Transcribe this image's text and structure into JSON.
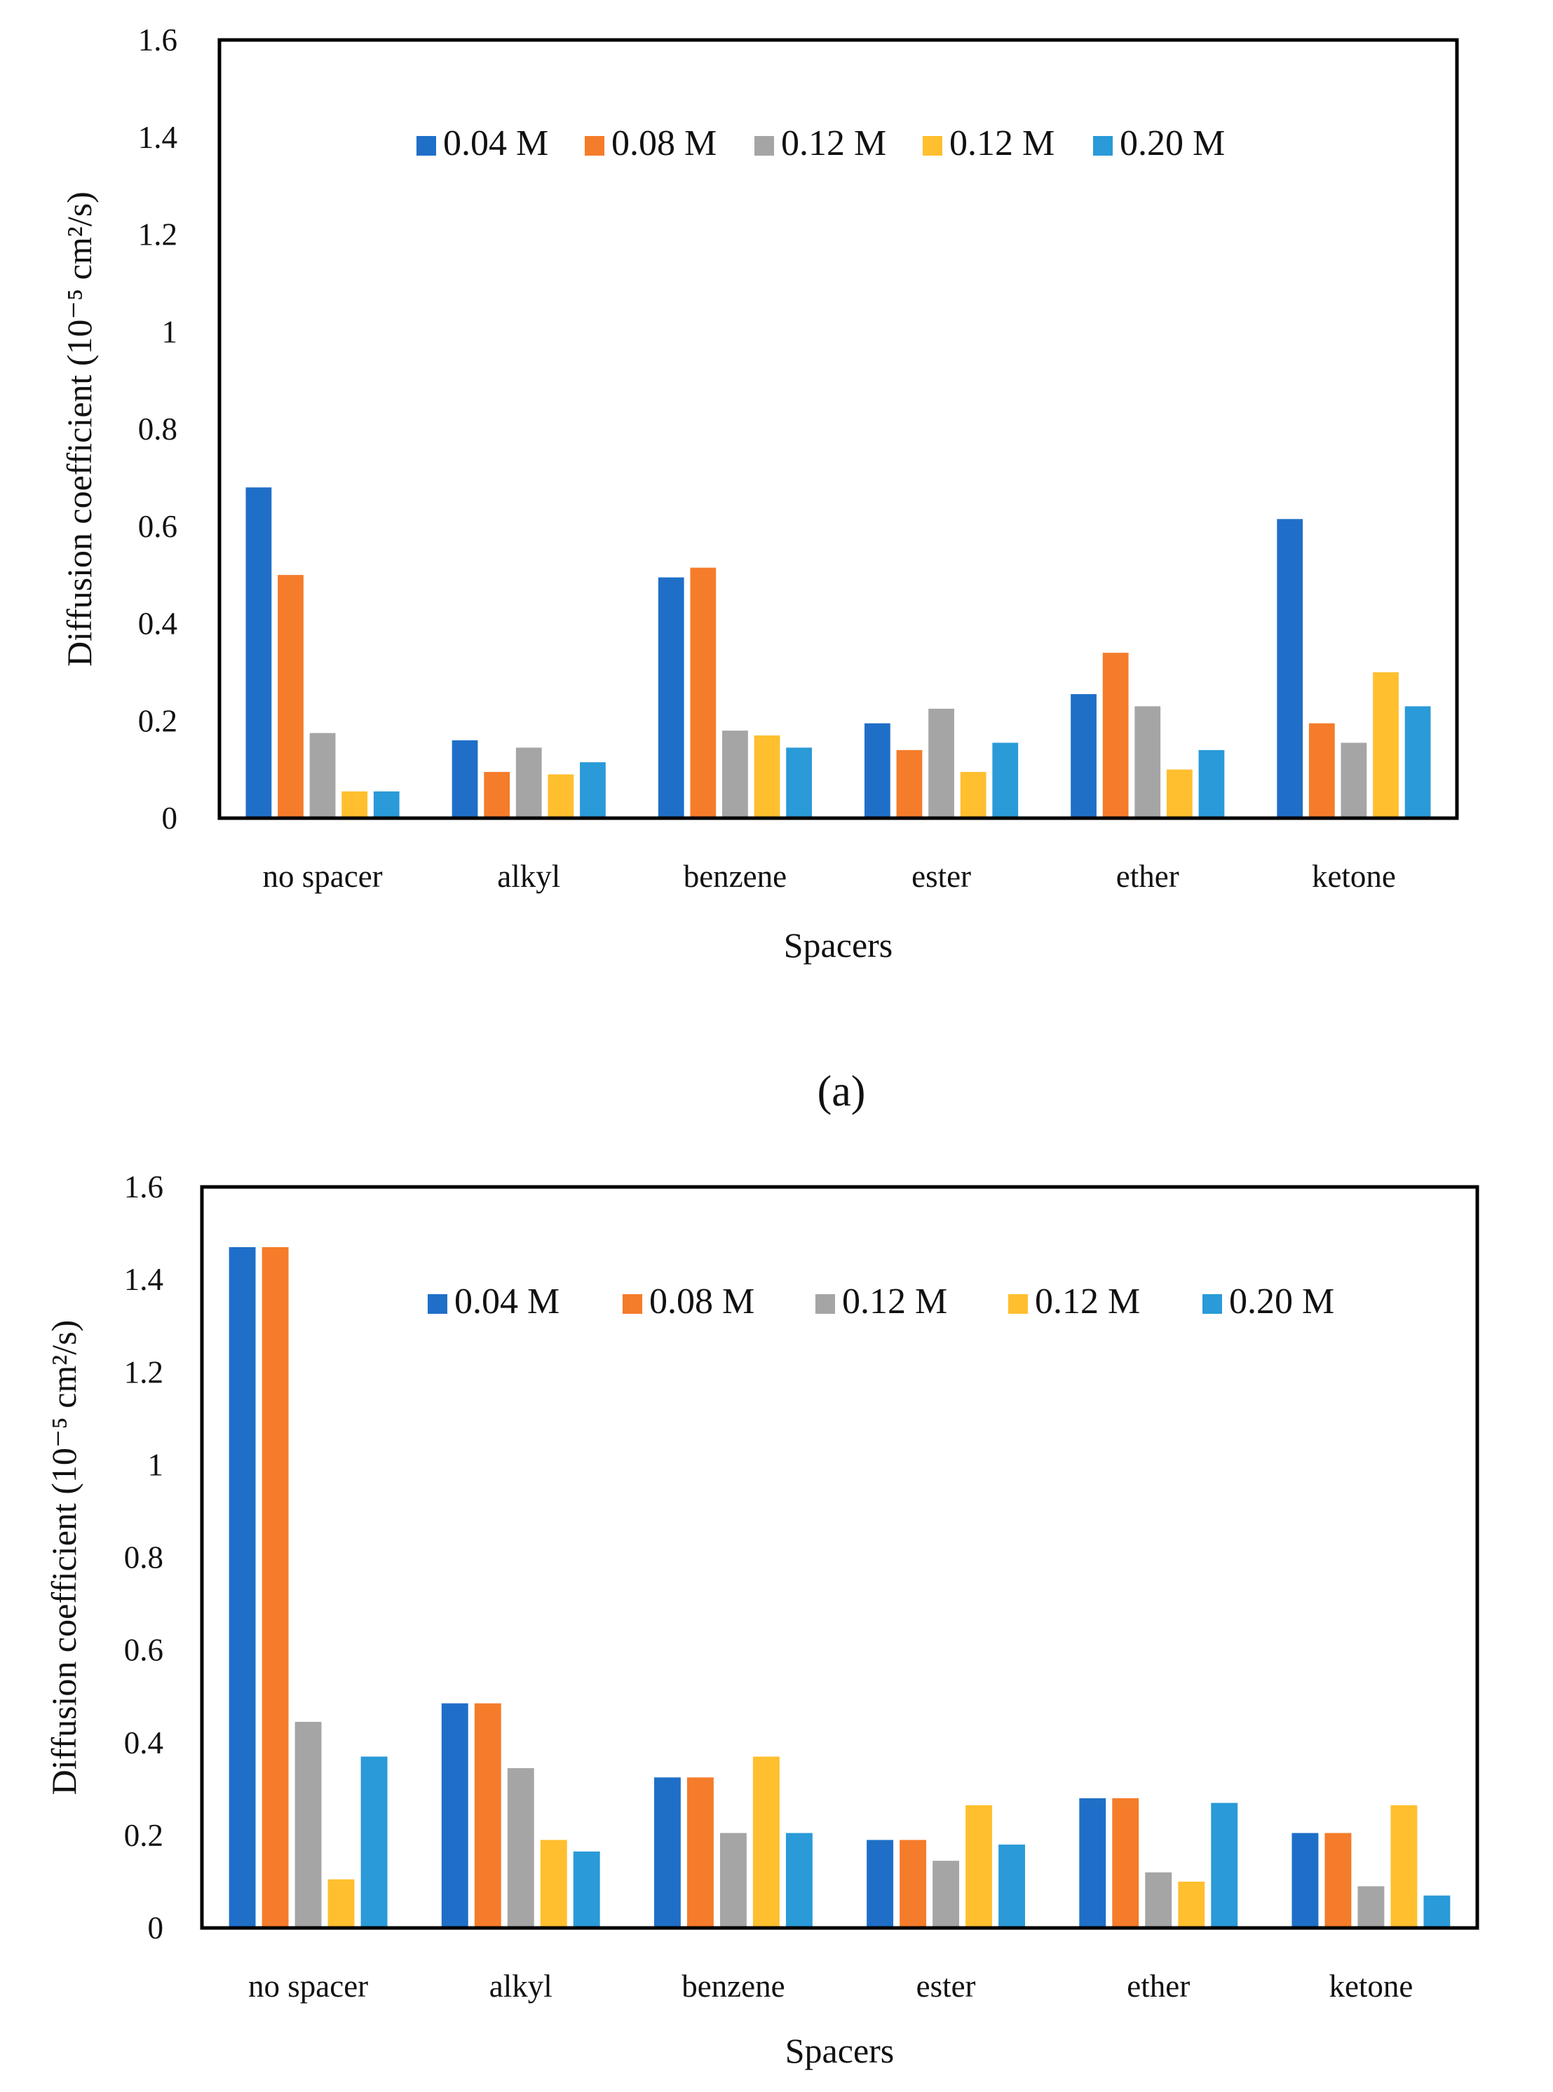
{
  "chart_data": [
    {
      "type": "bar",
      "panel_label": "(a)",
      "xlabel": "Spacers",
      "ylabel": "Diffusion coefficient (10⁻⁵ cm²/s)",
      "ylim": [
        0,
        1.6
      ],
      "yticks": [
        "0",
        "0.2",
        "0.4",
        "0.6",
        "0.8",
        "1",
        "1.2",
        "1.4",
        "1.6"
      ],
      "grid": false,
      "legend_position": "top",
      "categories": [
        "no spacer",
        "alkyl",
        "benzene",
        "ester",
        "ether",
        "ketone"
      ],
      "series": [
        {
          "name": "0.04 M",
          "color": "#1f6fc8",
          "values": [
            0.68,
            0.16,
            0.495,
            0.195,
            0.255,
            0.615
          ]
        },
        {
          "name": "0.08 M",
          "color": "#f57c2a",
          "values": [
            0.5,
            0.095,
            0.515,
            0.14,
            0.34,
            0.195
          ]
        },
        {
          "name": "0.12 M",
          "color": "#a5a5a5",
          "values": [
            0.175,
            0.145,
            0.18,
            0.225,
            0.23,
            0.155
          ]
        },
        {
          "name": "0.12 M",
          "color": "#ffbf2e",
          "values": [
            0.055,
            0.09,
            0.17,
            0.095,
            0.1,
            0.3
          ]
        },
        {
          "name": "0.20 M",
          "color": "#2a9ad8",
          "values": [
            0.055,
            0.115,
            0.145,
            0.155,
            0.14,
            0.23
          ]
        }
      ]
    },
    {
      "type": "bar",
      "xlabel": "Spacers",
      "ylabel": "Diffusion coefficient (10⁻⁵ cm²/s)",
      "ylim": [
        0,
        1.6
      ],
      "yticks": [
        "0",
        "0.2",
        "0.4",
        "0.6",
        "0.8",
        "1",
        "1.2",
        "1.4",
        "1.6"
      ],
      "grid": false,
      "legend_position": "top",
      "categories": [
        "no spacer",
        "alkyl",
        "benzene",
        "ester",
        "ether",
        "ketone"
      ],
      "series": [
        {
          "name": "0.04 M",
          "color": "#1f6fc8",
          "values": [
            1.47,
            0.485,
            0.325,
            0.19,
            0.28,
            0.205
          ]
        },
        {
          "name": "0.08 M",
          "color": "#f57c2a",
          "values": [
            1.47,
            0.485,
            0.325,
            0.19,
            0.28,
            0.205
          ]
        },
        {
          "name": "0.12 M",
          "color": "#a5a5a5",
          "values": [
            0.445,
            0.345,
            0.205,
            0.145,
            0.12,
            0.09
          ]
        },
        {
          "name": "0.12 M",
          "color": "#ffbf2e",
          "values": [
            0.105,
            0.19,
            0.37,
            0.265,
            0.1,
            0.265
          ]
        },
        {
          "name": "0.20 M",
          "color": "#2a9ad8",
          "values": [
            0.37,
            0.165,
            0.205,
            0.18,
            0.27,
            0.07
          ]
        }
      ]
    }
  ]
}
